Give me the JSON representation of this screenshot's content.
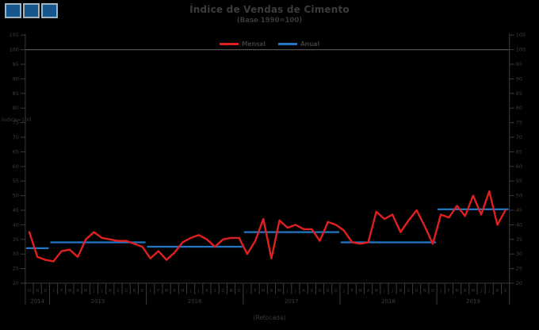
{
  "header": {
    "title": "Índice de Vendas de Cimento",
    "subtitle": "(Base 1990=100)"
  },
  "legend": [
    {
      "label": "Mensal",
      "color": "#e02020"
    },
    {
      "label": "Anual",
      "color": "#2277c5"
    }
  ],
  "axis_note": "Índice=100",
  "x_axis_title": "(Retocada)",
  "colors": {
    "background": "#000000",
    "text": "#3c3c3c",
    "axis": "#3a3a3a",
    "reference_line": "#505050",
    "mensal": "#e02020",
    "anual": "#2277c5",
    "logo_fill": "#17568c",
    "logo_border": "#9fb3c0"
  },
  "chart_data": {
    "type": "line",
    "title": "Índice de Vendas de Cimento",
    "subtitle": "(Base 1990=100)",
    "xlabel": "(Retocada)",
    "ylabel": "Índice=100",
    "grid": false,
    "legend_position": "top-center",
    "y_axis": {
      "min": 20,
      "max": 105,
      "step": 5,
      "reference_line": 100,
      "labels_both_sides": true
    },
    "x_axis": {
      "start": "Out 2014",
      "end": "Set 2019",
      "month_letters": [
        "O",
        "N",
        "D",
        "J",
        "F",
        "M",
        "A",
        "M",
        "J",
        "J",
        "A",
        "S",
        "O",
        "N",
        "D",
        "J",
        "F",
        "M",
        "A",
        "M",
        "J",
        "J",
        "A",
        "S",
        "O",
        "N",
        "D",
        "J",
        "F",
        "M",
        "A",
        "M",
        "J",
        "J",
        "A",
        "S",
        "O",
        "N",
        "D",
        "J",
        "F",
        "M",
        "A",
        "M",
        "J",
        "J",
        "A",
        "S",
        "O",
        "N",
        "D",
        "J",
        "F",
        "M",
        "A",
        "M",
        "J",
        "J",
        "A",
        "S"
      ],
      "years": [
        {
          "label": "2014",
          "months": 3
        },
        {
          "label": "2015",
          "months": 12
        },
        {
          "label": "2016",
          "months": 12
        },
        {
          "label": "2017",
          "months": 12
        },
        {
          "label": "2018",
          "months": 12
        },
        {
          "label": "2019",
          "months": 9
        }
      ]
    },
    "series": [
      {
        "name": "Mensal",
        "type": "monthly_line",
        "color": "#e02020",
        "values": [
          37.5,
          29,
          28,
          27.5,
          31,
          31.5,
          29,
          35,
          37.5,
          35.5,
          35,
          34.5,
          34.5,
          33.5,
          32.5,
          28.5,
          31,
          28,
          30.5,
          34,
          35.5,
          36.5,
          35,
          32.5,
          35,
          35.5,
          35.5,
          30,
          34.5,
          42,
          28.5,
          41.5,
          39,
          40,
          38.5,
          38.5,
          34.5,
          41,
          40,
          38,
          34,
          33.5,
          34,
          44.5,
          42,
          43.5,
          37.5,
          41.5,
          45,
          39.5,
          33.5,
          43.5,
          42.5,
          46.5,
          43,
          50,
          43.5,
          51.5,
          40,
          45
        ]
      },
      {
        "name": "Anual",
        "type": "annual_step",
        "color": "#2277c5",
        "values": [
          {
            "year": "2014",
            "value": 32
          },
          {
            "year": "2015",
            "value": 34
          },
          {
            "year": "2016",
            "value": 32.5
          },
          {
            "year": "2017",
            "value": 37.5
          },
          {
            "year": "2018",
            "value": 34
          },
          {
            "year": "2019",
            "value": 45.3
          }
        ]
      }
    ]
  }
}
